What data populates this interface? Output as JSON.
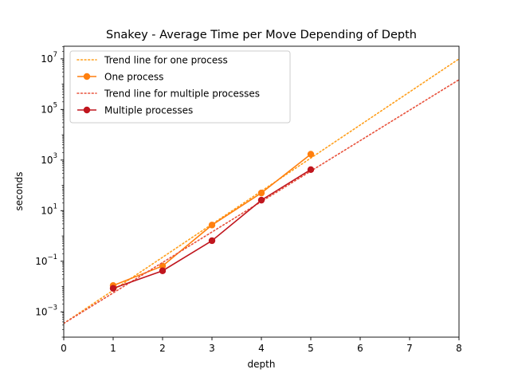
{
  "chart_data": {
    "type": "line",
    "title": "Snakey - Average Time per Move Depending of Depth",
    "xlabel": "depth",
    "ylabel": "seconds",
    "xlim": [
      0,
      8
    ],
    "ylim_log10": [
      -4,
      7.5
    ],
    "yscale": "log",
    "grid": false,
    "legend_position": "top-left",
    "x_ticks": [
      "0",
      "1",
      "2",
      "3",
      "4",
      "5",
      "6",
      "7",
      "8"
    ],
    "y_ticks": [
      {
        "exp": -3,
        "label": "10",
        "sup": "−3"
      },
      {
        "exp": -1,
        "label": "10",
        "sup": "−1"
      },
      {
        "exp": 1,
        "label": "10",
        "sup": "1"
      },
      {
        "exp": 3,
        "label": "10",
        "sup": "3"
      },
      {
        "exp": 5,
        "label": "10",
        "sup": "5"
      },
      {
        "exp": 7,
        "label": "10",
        "sup": "7"
      }
    ],
    "series": [
      {
        "name": "Trend line for one process",
        "style": "dotted",
        "color": "#ff9f1c",
        "x": [
          0,
          8
        ],
        "y": [
          0.00035,
          10000000
        ]
      },
      {
        "name": "One process",
        "style": "solid-markers",
        "color": "#ff7f0e",
        "x": [
          1,
          2,
          3,
          4,
          5
        ],
        "y": [
          0.011,
          0.065,
          2.7,
          50,
          1700
        ]
      },
      {
        "name": "Trend line for multiple processes",
        "style": "dotted",
        "color": "#e8523c",
        "x": [
          0,
          8
        ],
        "y": [
          0.00035,
          1500000
        ]
      },
      {
        "name": "Multiple processes",
        "style": "solid-markers",
        "color": "#c0161e",
        "x": [
          1,
          2,
          3,
          4,
          5
        ],
        "y": [
          0.0085,
          0.042,
          0.65,
          26,
          420
        ]
      }
    ]
  }
}
